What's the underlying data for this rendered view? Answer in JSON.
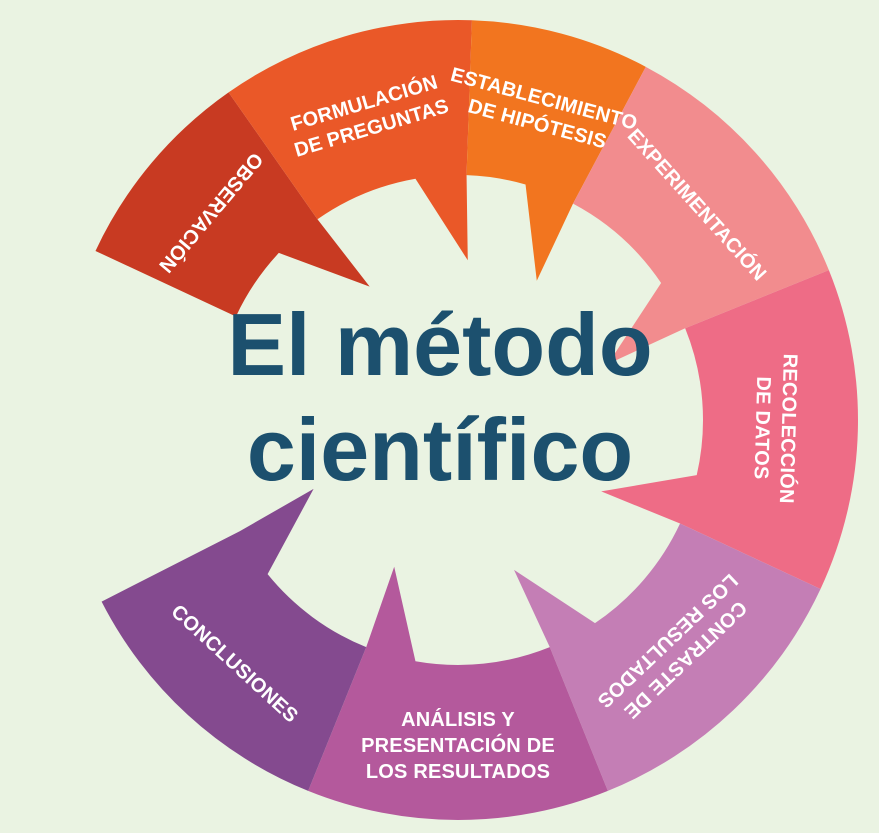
{
  "title": {
    "line1": "El método",
    "line2": "científico"
  },
  "colors": {
    "background": "#eaf3e2",
    "title": "#1c506e"
  },
  "steps": [
    {
      "label": [
        "OBSERVACIÓN"
      ],
      "color": "#c83a22"
    },
    {
      "label": [
        "FORMULACIÓN",
        "DE PREGUNTAS"
      ],
      "color": "#ea5828"
    },
    {
      "label": [
        "ESTABLECIMIENTO",
        "DE HIPÓTESIS"
      ],
      "color": "#f2751f"
    },
    {
      "label": [
        "EXPERIMENTACIÓN"
      ],
      "color": "#f28c8e"
    },
    {
      "label": [
        "RECOLECCIÓN",
        "DE DATOS"
      ],
      "color": "#ee6c86"
    },
    {
      "label": [
        "CONTRASTE DE",
        "LOS RESULTADOS"
      ],
      "color": "#c47eb5"
    },
    {
      "label": [
        "ANÁLISIS Y",
        "PRESENTACIÓN DE",
        "LOS RESULTADOS"
      ],
      "color": "#b4599c"
    },
    {
      "label": [
        "CONCLUSIONES"
      ],
      "color": "#844a8f"
    }
  ]
}
